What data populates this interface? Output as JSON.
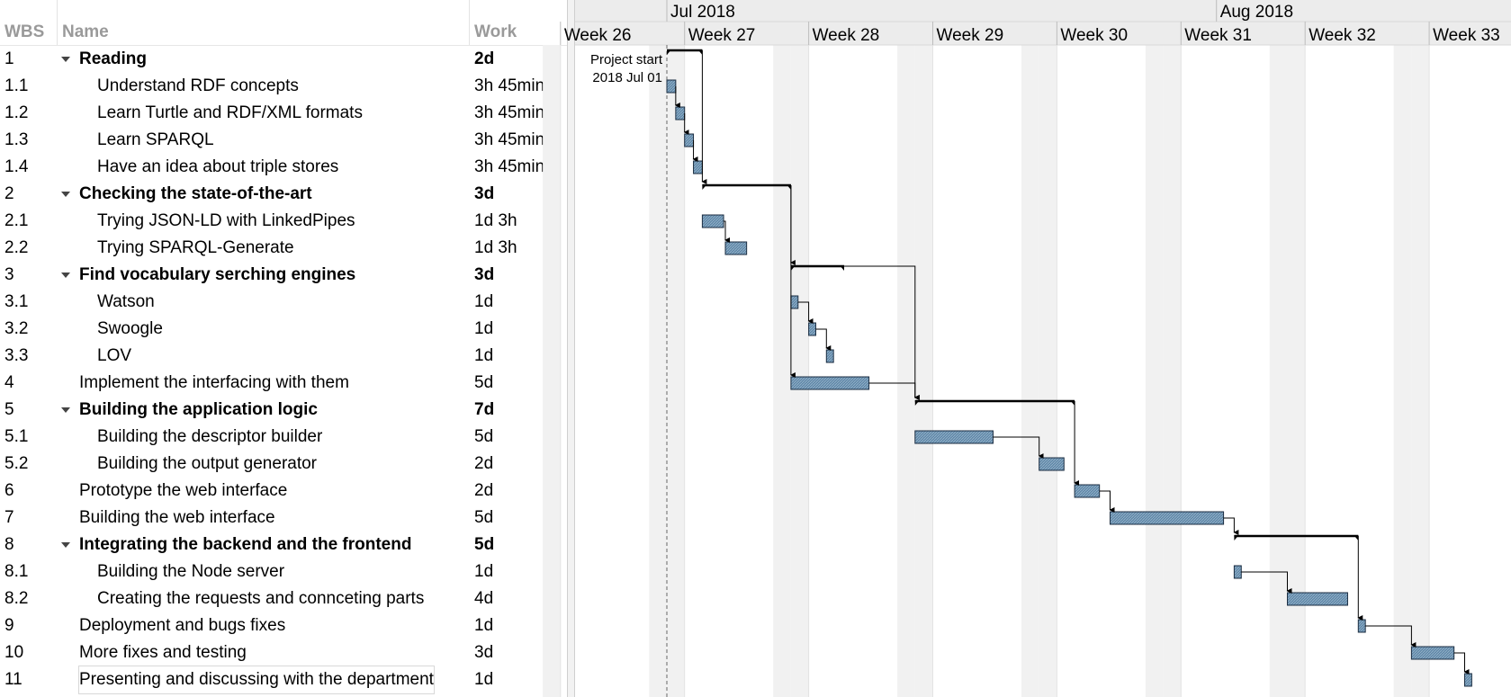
{
  "columns": {
    "wbs": "WBS",
    "name": "Name",
    "work": "Work"
  },
  "rows": [
    {
      "wbs": "1",
      "name": "Reading",
      "work": "2d",
      "summary": true,
      "level": 0
    },
    {
      "wbs": "1.1",
      "name": "Understand RDF concepts",
      "work": "3h 45min",
      "summary": false,
      "level": 1
    },
    {
      "wbs": "1.2",
      "name": "Learn Turtle and RDF/XML formats",
      "work": "3h 45min",
      "summary": false,
      "level": 1
    },
    {
      "wbs": "1.3",
      "name": "Learn SPARQL",
      "work": "3h 45min",
      "summary": false,
      "level": 1
    },
    {
      "wbs": "1.4",
      "name": "Have an idea about triple stores",
      "work": "3h 45min",
      "summary": false,
      "level": 1
    },
    {
      "wbs": "2",
      "name": "Checking the state-of-the-art",
      "work": "3d",
      "summary": true,
      "level": 0
    },
    {
      "wbs": "2.1",
      "name": "Trying JSON-LD with LinkedPipes",
      "work": "1d 3h",
      "summary": false,
      "level": 1
    },
    {
      "wbs": "2.2",
      "name": "Trying SPARQL-Generate",
      "work": "1d 3h",
      "summary": false,
      "level": 1
    },
    {
      "wbs": "3",
      "name": "Find vocabulary serching engines",
      "work": "3d",
      "summary": true,
      "level": 0
    },
    {
      "wbs": "3.1",
      "name": "Watson",
      "work": "1d",
      "summary": false,
      "level": 1
    },
    {
      "wbs": "3.2",
      "name": "Swoogle",
      "work": "1d",
      "summary": false,
      "level": 1
    },
    {
      "wbs": "3.3",
      "name": "LOV",
      "work": "1d",
      "summary": false,
      "level": 1
    },
    {
      "wbs": "4",
      "name": "Implement the interfacing with them",
      "work": "5d",
      "summary": false,
      "level": 0
    },
    {
      "wbs": "5",
      "name": "Building the application logic",
      "work": "7d",
      "summary": true,
      "level": 0
    },
    {
      "wbs": "5.1",
      "name": "Building the descriptor builder",
      "work": "5d",
      "summary": false,
      "level": 1
    },
    {
      "wbs": "5.2",
      "name": "Building the output generator",
      "work": "2d",
      "summary": false,
      "level": 1
    },
    {
      "wbs": "6",
      "name": "Prototype the web interface",
      "work": "2d",
      "summary": false,
      "level": 0
    },
    {
      "wbs": "7",
      "name": "Building the web interface",
      "work": "5d",
      "summary": false,
      "level": 0
    },
    {
      "wbs": "8",
      "name": "Integrating the backend and the frontend",
      "work": "5d",
      "summary": true,
      "level": 0
    },
    {
      "wbs": "8.1",
      "name": "Building the Node server",
      "work": "1d",
      "summary": false,
      "level": 1
    },
    {
      "wbs": "8.2",
      "name": "Creating the requests and connceting parts",
      "work": "4d",
      "summary": false,
      "level": 1
    },
    {
      "wbs": "9",
      "name": "Deployment and bugs fixes",
      "work": "1d",
      "summary": false,
      "level": 0
    },
    {
      "wbs": "10",
      "name": "More fixes and testing",
      "work": "3d",
      "summary": false,
      "level": 0
    },
    {
      "wbs": "11",
      "name": "Presenting and discussing with the department",
      "work": "1d",
      "summary": false,
      "level": 0
    }
  ],
  "timeline": {
    "months": [
      "Jul 2018",
      "Aug 2018"
    ],
    "weeks": [
      "Week 26",
      "Week 27",
      "Week 28",
      "Week 29",
      "Week 30",
      "Week 31",
      "Week 32",
      "Week 33"
    ],
    "project_start_label": "Project start",
    "project_start_date": "2018 Jul 01"
  },
  "schedule_days_from_jul_01": [
    {
      "wbs": "1",
      "start": 0,
      "end": 2.0
    },
    {
      "wbs": "1.1",
      "start": 0,
      "end": 0.5
    },
    {
      "wbs": "1.2",
      "start": 0.5,
      "end": 1.0
    },
    {
      "wbs": "1.3",
      "start": 1.0,
      "end": 1.5
    },
    {
      "wbs": "1.4",
      "start": 1.5,
      "end": 2.0
    },
    {
      "wbs": "2",
      "start": 2.0,
      "end": 7.0
    },
    {
      "wbs": "2.1",
      "start": 2.0,
      "end": 3.2
    },
    {
      "wbs": "2.2",
      "start": 3.3,
      "end": 4.5
    },
    {
      "wbs": "3",
      "start": 7.0,
      "end": 10.0
    },
    {
      "wbs": "3.1",
      "start": 7.0,
      "end": 7.4
    },
    {
      "wbs": "3.2",
      "start": 8.0,
      "end": 8.4
    },
    {
      "wbs": "3.3",
      "start": 9.0,
      "end": 9.4
    },
    {
      "wbs": "4",
      "start": 7.0,
      "end": 11.4
    },
    {
      "wbs": "5",
      "start": 14.0,
      "end": 23.0
    },
    {
      "wbs": "5.1",
      "start": 14.0,
      "end": 18.4
    },
    {
      "wbs": "5.2",
      "start": 21.0,
      "end": 22.4
    },
    {
      "wbs": "6",
      "start": 23.0,
      "end": 24.4
    },
    {
      "wbs": "7",
      "start": 25.0,
      "end": 31.4
    },
    {
      "wbs": "8",
      "start": 32.0,
      "end": 39.0
    },
    {
      "wbs": "8.1",
      "start": 32.0,
      "end": 32.4
    },
    {
      "wbs": "8.2",
      "start": 35.0,
      "end": 38.4
    },
    {
      "wbs": "9",
      "start": 39.0,
      "end": 39.4
    },
    {
      "wbs": "10",
      "start": 42.0,
      "end": 44.4
    },
    {
      "wbs": "11",
      "start": 45.0,
      "end": 45.4
    }
  ],
  "dependencies": [
    [
      "1.1",
      "1.2"
    ],
    [
      "1.2",
      "1.3"
    ],
    [
      "1.3",
      "1.4"
    ],
    [
      "1",
      "2"
    ],
    [
      "2.1",
      "2.2"
    ],
    [
      "2",
      "3"
    ],
    [
      "2",
      "4"
    ],
    [
      "3.1",
      "3.2"
    ],
    [
      "3.2",
      "3.3"
    ],
    [
      "3",
      "5"
    ],
    [
      "4",
      "5"
    ],
    [
      "5.1",
      "5.2"
    ],
    [
      "5",
      "6"
    ],
    [
      "6",
      "7"
    ],
    [
      "7",
      "8"
    ],
    [
      "8.1",
      "8.2"
    ],
    [
      "8",
      "9"
    ],
    [
      "9",
      "10"
    ],
    [
      "10",
      "11"
    ]
  ],
  "colors": {
    "bar_fill": "#5f87a8",
    "bar_border": "#1c2e42",
    "weekend_shade": "#f1f1f1",
    "header_bg": "#ececec",
    "grid": "#d9d9d9"
  }
}
